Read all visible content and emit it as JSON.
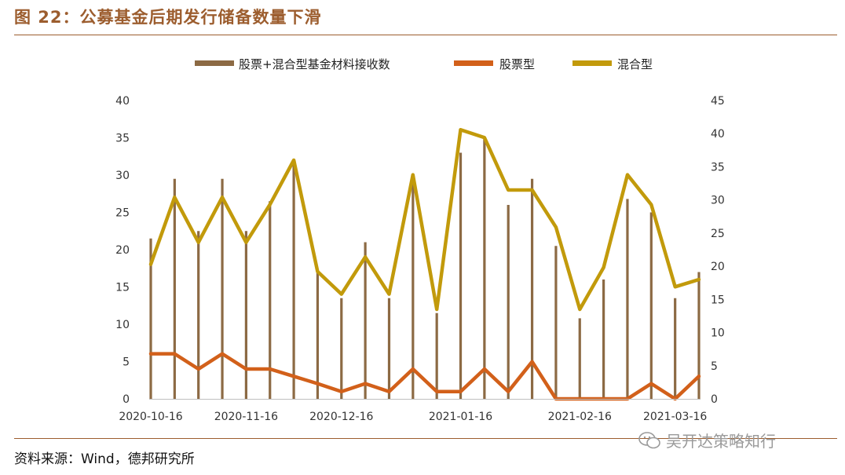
{
  "header": {
    "title": "图 22：公募基金后期发行储备数量下滑"
  },
  "footer": {
    "source": "资料来源：Wind，德邦研究所",
    "watermark": "吴开达策略知行",
    "watermark_icon": "wechat-icon"
  },
  "colors": {
    "bar": "#8c6a44",
    "stock_line": "#d2601a",
    "mixed_line": "#c29a0b",
    "brand": "#9c5d2e"
  },
  "chart_data": {
    "type": "bar",
    "x_tick_labels": [
      "2020-10-16",
      "2020-11-16",
      "2020-12-16",
      "2021-01-16",
      "2021-02-16",
      "2021-03-16"
    ],
    "x_tick_index": [
      0,
      4,
      8,
      13,
      18,
      22
    ],
    "legend": [
      "股票+混合型基金材料接收数",
      "股票型",
      "混合型"
    ],
    "legend_placement": "top",
    "left_axis": {
      "range": [
        0,
        40
      ],
      "ticks": [
        0,
        5,
        10,
        15,
        20,
        25,
        30,
        35,
        40
      ]
    },
    "right_axis": {
      "range": [
        0,
        45
      ],
      "ticks": [
        0,
        5,
        10,
        15,
        20,
        25,
        30,
        35,
        40,
        45
      ]
    },
    "grid": false,
    "series": [
      {
        "name": "股票+混合型基金材料接收数",
        "type": "bar",
        "axis": "left",
        "values": [
          21.5,
          29.5,
          22.5,
          29.5,
          22.5,
          26.5,
          31.5,
          17,
          13.5,
          21,
          13.5,
          30,
          11.5,
          33,
          35,
          26,
          29.5,
          20.5,
          10.8,
          16,
          26.8,
          25,
          13.5,
          17
        ]
      },
      {
        "name": "股票型",
        "type": "line",
        "axis": "right",
        "values": [
          6.8,
          6.8,
          4.5,
          6.8,
          4.5,
          4.5,
          3.4,
          2.3,
          1.1,
          2.3,
          1.1,
          4.5,
          1.1,
          1.1,
          4.5,
          1.1,
          5.6,
          0,
          0,
          0,
          0,
          2.3,
          0,
          3.4
        ]
      },
      {
        "name": "混合型",
        "type": "line",
        "axis": "right",
        "values": [
          20.3,
          30.4,
          23.6,
          30.4,
          23.6,
          29.3,
          36,
          19.2,
          15.8,
          21.4,
          15.8,
          33.8,
          13.5,
          40.6,
          39.4,
          31.5,
          31.5,
          25.9,
          13.5,
          19.8,
          33.8,
          29.3,
          16.9,
          18
        ]
      }
    ]
  }
}
